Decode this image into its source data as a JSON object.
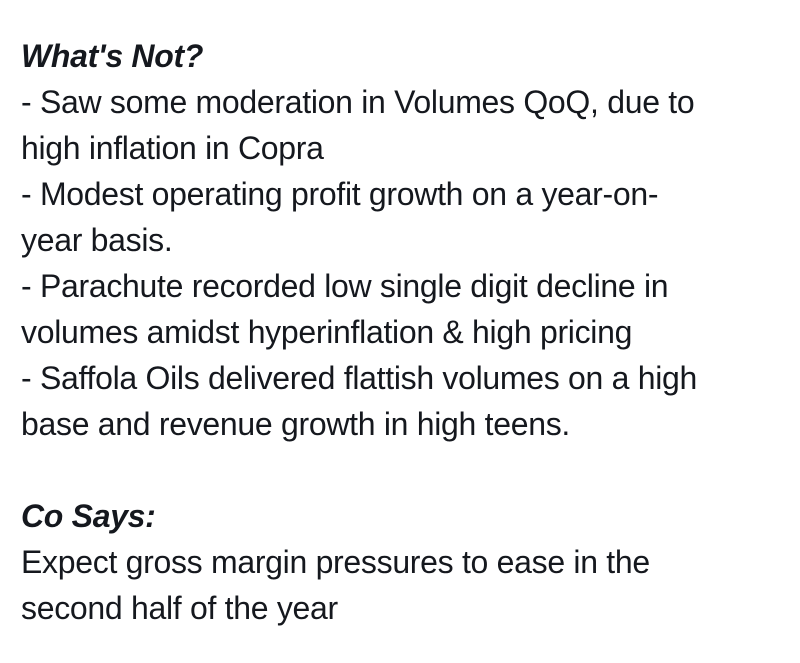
{
  "page": {
    "background_color": "#ffffff",
    "text_color": "#15181e"
  },
  "sections": [
    {
      "heading": "What's Not?",
      "lines": [
        "- Saw some moderation in Volumes QoQ, due to",
        "high inflation in Copra",
        "- Modest operating profit growth on a year-on-",
        "year basis.",
        "- Parachute recorded low single digit decline in",
        "volumes amidst hyperinflation & high pricing",
        "- Saffola Oils delivered flattish volumes on a high",
        "base and revenue growth in high teens."
      ]
    },
    {
      "heading": "Co Says:",
      "lines": [
        "Expect gross margin pressures to ease in the",
        "second half of the year"
      ]
    }
  ]
}
